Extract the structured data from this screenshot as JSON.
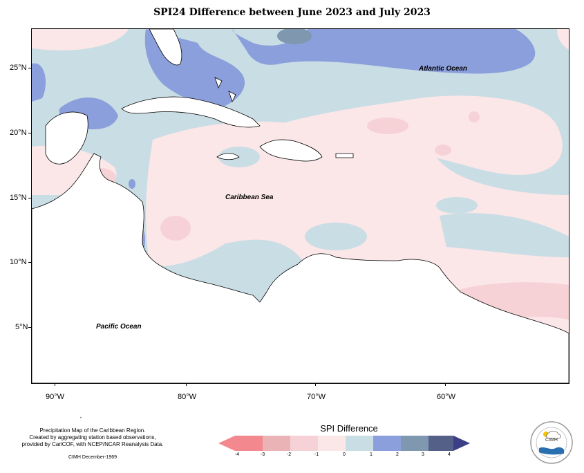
{
  "title": "SPI24 Difference between June 2023 and July 2023",
  "labels": {
    "atlantic": "Atlantic Ocean",
    "caribbean": "Caribbean Sea",
    "pacific": "Pacific Ocean"
  },
  "lat_labels": [
    "25°N",
    "20°N",
    "15°N",
    "10°N",
    "5°N"
  ],
  "lon_labels": [
    "90°W",
    "80°W",
    "70°W",
    "60°W"
  ],
  "legend": {
    "title": "SPI Difference",
    "ticks": [
      "-4",
      "-3",
      "-2",
      "-1",
      "0",
      "1",
      "2",
      "3",
      "4"
    ],
    "colors": [
      "#f4888f",
      "#eab4b7",
      "#f6d2d6",
      "#fbe6e8",
      "#c9dde4",
      "#8b9fdc",
      "#7f98b0",
      "#556089",
      "#3b3f86"
    ]
  },
  "credits": {
    "line1": "Precipitation Map of the Caribbean Region.",
    "line2": "Created by aggregating station based observations,",
    "line3": "provided by CariCOF, with NCEP/NCAR Reanalysis Data.",
    "stamp": "CIMH December-1969"
  },
  "logo": {
    "text": "CIMH"
  }
}
